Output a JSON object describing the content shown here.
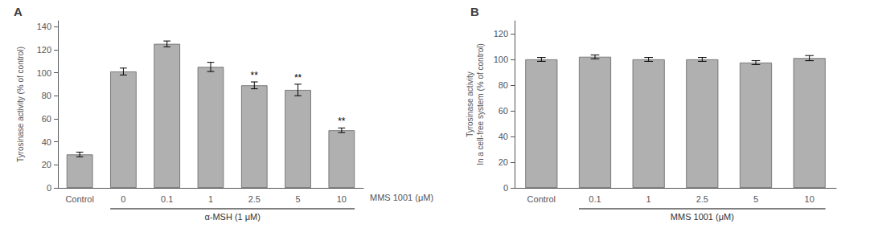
{
  "chart_data": [
    {
      "type": "bar",
      "title": "A",
      "categories": [
        "Control",
        "0",
        "0.1",
        "1",
        "2.5",
        "5",
        "10"
      ],
      "values": [
        29,
        101,
        125,
        105,
        89,
        85,
        50
      ],
      "errors": [
        2,
        3,
        2.5,
        4,
        3,
        5,
        2
      ],
      "color": "#b0b0b0",
      "ylabel": "Tyrosinase activity (% of control)",
      "xlabel": "MMS 1001 (μM)",
      "annotations": [
        {
          "category": "2.5",
          "text": "**"
        },
        {
          "category": "5",
          "text": "**"
        },
        {
          "category": "10",
          "text": "**"
        },
        {
          "span": [
            "0",
            "10"
          ],
          "text": "α-MSH (1 μM)"
        }
      ],
      "ylim": [
        0,
        145
      ],
      "yticks": [
        0,
        20,
        40,
        60,
        80,
        100,
        120,
        140
      ],
      "grid": false
    },
    {
      "type": "bar",
      "title": "B",
      "categories": [
        "Control",
        "0.1",
        "1",
        "2.5",
        "5",
        "10"
      ],
      "values": [
        100,
        102,
        100,
        100,
        97.5,
        101
      ],
      "errors": [
        1.5,
        1.5,
        1.5,
        1.5,
        1.5,
        2
      ],
      "color": "#b0b0b0",
      "ylabel": "Tyrosinase activity\nIn a cell-free system (% of control)",
      "annotations": [
        {
          "span": [
            "0.1",
            "10"
          ],
          "text": "MMS 1001 (μM)"
        }
      ],
      "ylim": [
        0,
        130
      ],
      "yticks": [
        0,
        20,
        40,
        60,
        80,
        100,
        120
      ],
      "grid": false
    }
  ]
}
